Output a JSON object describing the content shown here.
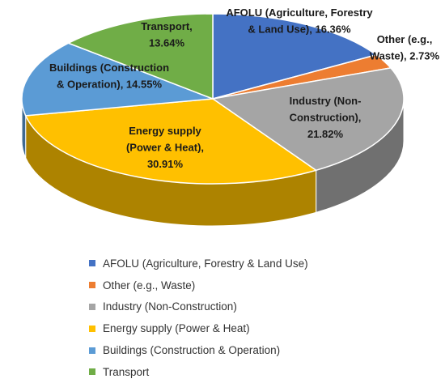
{
  "chart_data": {
    "type": "pie",
    "categories": [
      "AFOLU (Agriculture, Forestry & Land Use)",
      "Other (e.g., Waste)",
      "Industry (Non-Construction)",
      "Energy supply (Power & Heat)",
      "Buildings (Construction & Operation)",
      "Transport"
    ],
    "values": [
      16.36,
      2.73,
      21.82,
      30.91,
      14.55,
      13.64
    ],
    "data_labels": [
      [
        "AFOLU (Agriculture, Forestry",
        "& Land Use), 16.36%"
      ],
      [
        "Other (e.g.,",
        "Waste), 2.73%"
      ],
      [
        "Industry (Non-",
        "Construction),",
        "21.82%"
      ],
      [
        "Energy supply",
        "(Power & Heat),",
        "30.91%"
      ],
      [
        "Buildings (Construction",
        "& Operation), 14.55%"
      ],
      [
        "Transport,",
        "13.64%"
      ]
    ],
    "colors": [
      "#4472C4",
      "#ED7D31",
      "#A5A5A5",
      "#FFC000",
      "#5B9BD5",
      "#70AD47"
    ],
    "style": "3d-pie",
    "legend_position": "bottom"
  }
}
